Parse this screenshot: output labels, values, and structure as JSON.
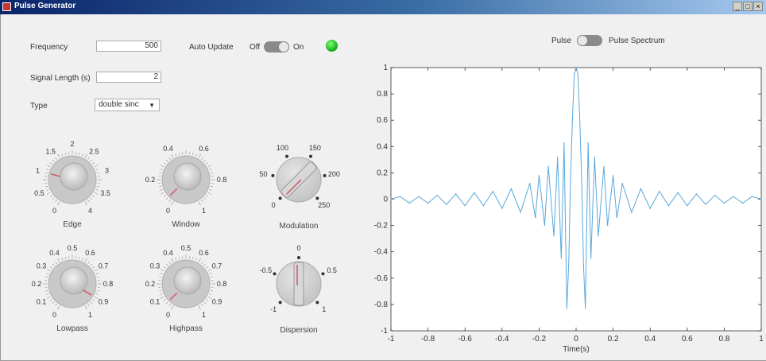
{
  "window": {
    "title": "Pulse Generator",
    "buttons": [
      "_",
      "□",
      "×"
    ]
  },
  "controls": {
    "frequency": {
      "label": "Frequency",
      "value": "500"
    },
    "auto_update": {
      "label": "Auto Update",
      "off_label": "Off",
      "on_label": "On",
      "state": "off"
    },
    "status_lamp": {
      "color": "#22cc22"
    },
    "signal_length": {
      "label": "Signal Length (s)",
      "value": "2"
    },
    "type": {
      "label": "Type",
      "value": "double sinc"
    }
  },
  "view_toggle": {
    "left_label": "Pulse",
    "right_label": "Pulse Spectrum",
    "state": "pulse"
  },
  "knobs": [
    {
      "id": "edge",
      "name": "Edge",
      "ticks": [
        "0",
        "0.5",
        "1",
        "1.5",
        "2",
        "2.5",
        "3",
        "3.5",
        "4"
      ],
      "min": 0,
      "max": 4,
      "value": 1.0
    },
    {
      "id": "window",
      "name": "Window",
      "ticks": [
        "0",
        "0.2",
        "0.4",
        "0.6",
        "0.8",
        "1"
      ],
      "min": 0,
      "max": 1,
      "value": 0.05
    },
    {
      "id": "modulation",
      "name": "Modulation",
      "ticks": [
        "0",
        "50",
        "100",
        "150",
        "200",
        "250"
      ],
      "min": 0,
      "max": 250,
      "value": 0
    },
    {
      "id": "lowpass",
      "name": "Lowpass",
      "ticks": [
        "0",
        "0.1",
        "0.2",
        "0.3",
        "0.4",
        "0.5",
        "0.6",
        "0.7",
        "0.8",
        "0.9",
        "1"
      ],
      "min": 0,
      "max": 1,
      "value": 0.9
    },
    {
      "id": "highpass",
      "name": "Highpass",
      "ticks": [
        "0",
        "0.1",
        "0.2",
        "0.3",
        "0.4",
        "0.5",
        "0.6",
        "0.7",
        "0.8",
        "0.9",
        "1"
      ],
      "min": 0,
      "max": 1,
      "value": 0.05
    },
    {
      "id": "dispersion",
      "name": "Dispersion",
      "ticks": [
        "-1",
        "-0.5",
        "0",
        "0.5",
        "1"
      ],
      "min": -1,
      "max": 1,
      "value": 0
    }
  ],
  "chart_data": {
    "type": "line",
    "title": "",
    "xlabel": "Time(s)",
    "ylabel": "",
    "xlim": [
      -1,
      1
    ],
    "ylim": [
      -1,
      1
    ],
    "xticks": [
      "-1",
      "-0.8",
      "-0.6",
      "-0.4",
      "-0.2",
      "0",
      "0.2",
      "0.4",
      "0.6",
      "0.8",
      "1"
    ],
    "yticks": [
      "1",
      "0.8",
      "0.6",
      "0.4",
      "0.2",
      "0",
      "-0.2",
      "-0.4",
      "-0.6",
      "-0.8",
      "-1"
    ],
    "line_color": "#5aa8dc",
    "series": [
      {
        "x": [
          -1,
          -0.95,
          -0.9,
          -0.85,
          -0.8,
          -0.75,
          -0.7,
          -0.65,
          -0.6,
          -0.55,
          -0.5,
          -0.45,
          -0.4,
          -0.35,
          -0.3,
          -0.25,
          -0.22,
          -0.2,
          -0.17,
          -0.15,
          -0.12,
          -0.1,
          -0.08,
          -0.065,
          -0.05,
          -0.04,
          -0.03,
          -0.02,
          -0.01,
          0,
          0.01,
          0.02,
          0.03,
          0.04,
          0.05,
          0.065,
          0.08,
          0.1,
          0.12,
          0.15,
          0.17,
          0.2,
          0.22,
          0.25,
          0.3,
          0.35,
          0.4,
          0.45,
          0.5,
          0.55,
          0.6,
          0.65,
          0.7,
          0.75,
          0.8,
          0.85,
          0.9,
          0.95,
          1
        ],
        "y": [
          0,
          0.02,
          -0.03,
          0.02,
          -0.03,
          0.03,
          -0.04,
          0.04,
          -0.05,
          0.05,
          -0.05,
          0.06,
          -0.07,
          0.08,
          -0.1,
          0.12,
          -0.14,
          0.18,
          -0.2,
          0.25,
          -0.28,
          0.32,
          -0.45,
          0.43,
          -0.83,
          -0.5,
          0.15,
          0.6,
          0.95,
          1.0,
          0.95,
          0.6,
          0.15,
          -0.5,
          -0.83,
          0.43,
          -0.45,
          0.32,
          -0.28,
          0.25,
          -0.2,
          0.18,
          -0.14,
          0.12,
          -0.1,
          0.08,
          -0.07,
          0.06,
          -0.05,
          0.05,
          -0.05,
          0.04,
          -0.04,
          0.03,
          -0.03,
          0.02,
          -0.03,
          0.02,
          0
        ]
      }
    ]
  }
}
